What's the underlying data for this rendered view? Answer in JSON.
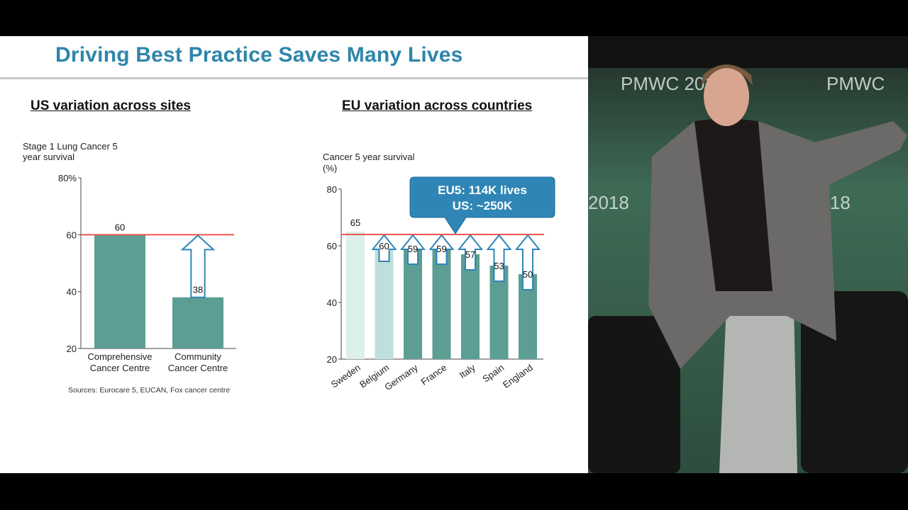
{
  "slide": {
    "title": "Driving Best Practice Saves Many Lives",
    "colors": {
      "title": "#2e86ab",
      "bar": "#5c9e93",
      "bar_light": "#bfe0da",
      "bar_sweden": "#dcefe9",
      "target_line": "#ef5350",
      "callout": "#2f86b6"
    }
  },
  "us_panel": {
    "heading": "US variation across sites"
  },
  "eu_panel": {
    "heading": "EU variation across countries"
  },
  "chart_data": [
    {
      "type": "bar",
      "title": "US variation across sites",
      "ylabel": "Stage 1 Lung Cancer 5 year survival",
      "ylim": [
        20,
        80
      ],
      "yticks": [
        "20",
        "40",
        "60",
        "80%"
      ],
      "categories": [
        "Comprehensive Cancer Centre",
        "Community Cancer Centre"
      ],
      "category_lines": [
        [
          "Comprehensive",
          "Cancer Centre"
        ],
        [
          "Community",
          "Cancer Centre"
        ]
      ],
      "values": [
        60,
        38
      ],
      "data_labels": [
        "60",
        "38"
      ],
      "target_line": 60,
      "improvement_arrows": [
        false,
        true
      ],
      "source": "Sources: Eurocare 5, EUCAN, Fox cancer centre"
    },
    {
      "type": "bar",
      "title": "EU variation across countries",
      "ylabel": "Cancer 5 year survival (%)",
      "ylabel_lines": [
        "Cancer 5 year survival",
        "(%)"
      ],
      "ylim": [
        20,
        80
      ],
      "yticks": [
        "20",
        "40",
        "60",
        "80"
      ],
      "categories": [
        "Sweden",
        "Belgium",
        "Germany",
        "France",
        "Italy",
        "Spain",
        "England"
      ],
      "values": [
        65,
        60,
        59,
        59,
        57,
        53,
        50
      ],
      "data_labels": [
        "65",
        "60",
        "59",
        "59",
        "57",
        "53",
        "50"
      ],
      "target_line": 64,
      "improvement_arrows": [
        false,
        true,
        true,
        true,
        true,
        true,
        true
      ],
      "callout": [
        "EU5: 114K lives",
        "US: ~250K"
      ]
    }
  ]
}
